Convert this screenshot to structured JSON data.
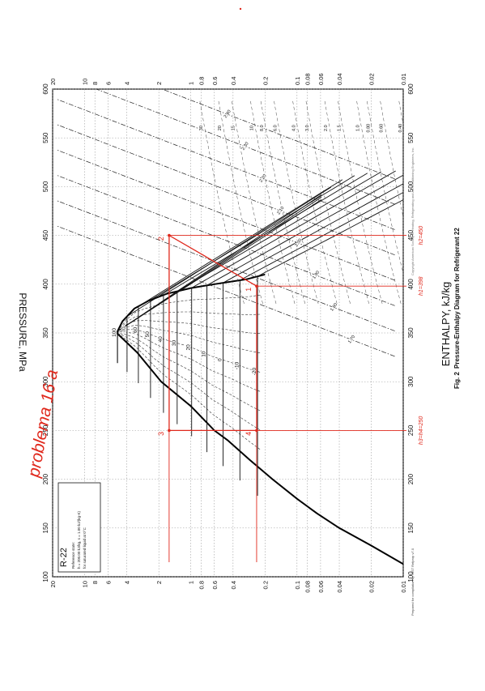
{
  "chart_data": {
    "type": "line",
    "title": "Pressure-Enthalpy Diagram for Refrigerant 22",
    "figure_label": "Fig. 2",
    "refrigerant": "R-22",
    "legend_lines": [
      "Reference state:",
      "h = 200.00 kJ/kg, s = 1.00 kJ/(kg·K)",
      "for saturated liquid at 0°C"
    ],
    "xlabel": "ENTHALPY, kJ/kg",
    "ylabel": "PRESSURE, MPa",
    "x_ticks": [
      100,
      150,
      200,
      250,
      300,
      350,
      400,
      450,
      500,
      550,
      600
    ],
    "x_tick_labels": [
      "100",
      "150",
      "200",
      "250",
      "300",
      "350",
      "400",
      "450",
      "500",
      "550",
      "600"
    ],
    "y_ticks": [
      0.01,
      0.02,
      0.04,
      0.06,
      0.08,
      0.1,
      0.2,
      0.4,
      0.6,
      0.8,
      1,
      2,
      4,
      6,
      8,
      10,
      20
    ],
    "y_tick_labels": [
      "0.01",
      "0.02",
      "0.04",
      "0.06",
      "0.08",
      "0.1",
      "0.2",
      "0.4",
      "0.6",
      "0.8",
      "1",
      "2",
      "4",
      "6",
      "8",
      "10",
      "20"
    ],
    "xlim": [
      100,
      600
    ],
    "ylim": [
      0.01,
      20
    ],
    "yscale": "log",
    "grid": true,
    "saturated_liquid": {
      "h": [
        113,
        132,
        150,
        165,
        180,
        200,
        220,
        240,
        250,
        275,
        300,
        330,
        350
      ],
      "p": [
        0.01,
        0.02,
        0.04,
        0.065,
        0.1,
        0.17,
        0.28,
        0.45,
        0.6,
        1.0,
        1.9,
        3.2,
        4.99
      ]
    },
    "saturated_vapor": {
      "h": [
        350,
        362,
        375,
        383,
        390,
        396,
        400,
        405,
        410
      ],
      "p": [
        4.99,
        4.4,
        3.4,
        2.5,
        1.7,
        1.0,
        0.6,
        0.3,
        0.2
      ]
    },
    "isotherms_C": [
      -80,
      -70,
      -60,
      -50,
      -40,
      -30,
      -20,
      -10,
      0,
      10,
      20,
      30,
      40,
      50,
      60,
      70,
      80,
      90,
      100
    ],
    "temperature_labels": [
      "-80",
      "-70",
      "-60",
      "-50",
      "-40",
      "-30",
      "-20",
      "-10",
      "0",
      "10",
      "20",
      "30",
      "40",
      "50",
      "60",
      "70",
      "80",
      "90",
      "100"
    ],
    "quality_lines": [
      "0.10",
      "0.20",
      "0.30",
      "0.40",
      "0.50",
      "0.60",
      "0.70",
      "0.80",
      "0.90"
    ],
    "entropy_labels": [
      "1.70",
      "1.80",
      "1.90",
      "2.00",
      "2.10",
      "2.20",
      "2.30",
      "2.40"
    ],
    "density_labels": [
      "0.40",
      "0.60",
      "0.80",
      "1.0",
      "1.5",
      "2.0",
      "3.0",
      "4.0",
      "6.0",
      "8.0",
      "10",
      "15",
      "20",
      "30"
    ],
    "cycle": {
      "points": [
        {
          "label": "1",
          "h": 398,
          "p": 0.24
        },
        {
          "label": "2",
          "h": 450,
          "p": 1.6
        },
        {
          "label": "3",
          "h": 250,
          "p": 1.6
        },
        {
          "label": "4",
          "h": 250,
          "p": 0.24
        }
      ],
      "h_annotations": [
        {
          "h": 250,
          "text": "h3=h4=250"
        },
        {
          "h": 398,
          "text": "h1=398"
        },
        {
          "h": 450,
          "text": "h2=450"
        }
      ],
      "color": "#e0281c"
    },
    "handwritten_note": "problema 16 a",
    "small_print": {
      "source": "Prepared for compilation by NIST Refprop v7.0",
      "corner_note": "Copyright American Society of Heating, Refrigerating and Air-Conditioning Engineers, Inc."
    }
  }
}
